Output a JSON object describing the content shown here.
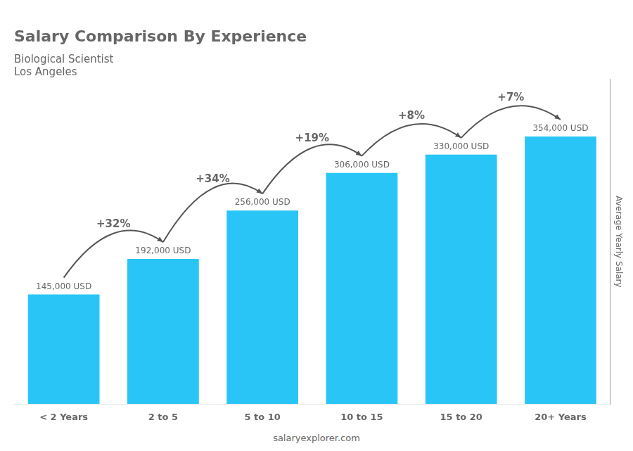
{
  "chart_data": {
    "type": "bar",
    "title": "Salary Comparison By Experience",
    "subtitle": "Biological Scientist",
    "city": "Los Angeles",
    "ylabel": "Average Yearly Salary",
    "source": "salaryexplorer.com",
    "categories": [
      "< 2 Years",
      "2 to 5",
      "5 to 10",
      "10 to 15",
      "15 to 20",
      "20+ Years"
    ],
    "values": [
      145000,
      192000,
      256000,
      306000,
      330000,
      354000
    ],
    "value_labels": [
      "145,000 USD",
      "192,000 USD",
      "256,000 USD",
      "306,000 USD",
      "330,000 USD",
      "354,000 USD"
    ],
    "data_labels": true,
    "color": "#29c5f6",
    "ylim": [
      0,
      430000
    ],
    "grid": false,
    "tick_labels": "x",
    "annotations": [
      {
        "text": "+32%",
        "from": "< 2 Years",
        "to": "2 to 5"
      },
      {
        "text": "+34%",
        "from": "2 to 5",
        "to": "5 to 10"
      },
      {
        "text": "+19%",
        "from": "5 to 10",
        "to": "10 to 15"
      },
      {
        "text": "+8%",
        "from": "10 to 15",
        "to": "15 to 20"
      },
      {
        "text": "+7%",
        "from": "15 to 20",
        "to": "20+ Years"
      }
    ]
  }
}
